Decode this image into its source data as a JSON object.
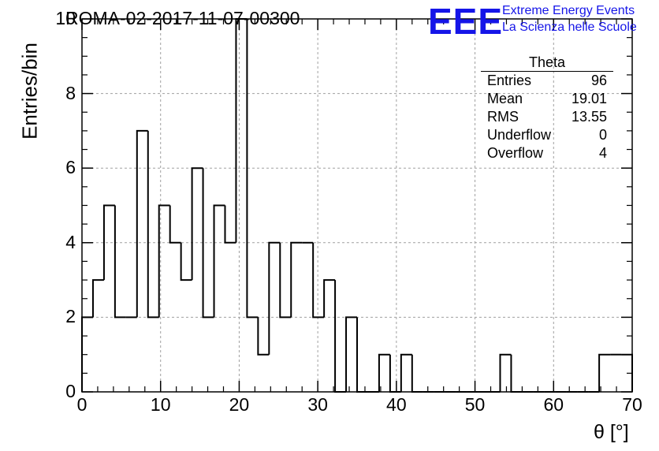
{
  "chart_data": {
    "type": "histogram",
    "title": "ROMA-02-2017-11-07-00300",
    "xlabel": "θ [°]",
    "ylabel": "Entries/bin",
    "xlim": [
      0,
      70
    ],
    "ylim": [
      0,
      10
    ],
    "x_ticks": [
      "0",
      "10",
      "20",
      "30",
      "40",
      "50",
      "60",
      "70"
    ],
    "y_ticks": [
      "0",
      "2",
      "4",
      "6",
      "8",
      "10"
    ],
    "grid": true,
    "bin_edges": [
      0,
      1.4,
      2.8,
      4.2,
      5.6,
      7.0,
      8.4,
      9.8,
      11.2,
      12.6,
      14.0,
      15.4,
      16.8,
      18.2,
      19.6,
      21.0,
      22.4,
      23.8,
      25.2,
      26.6,
      28.0,
      29.4,
      30.8,
      32.2,
      33.6,
      35.0,
      36.4,
      37.8,
      39.2,
      40.6,
      42.0,
      43.4,
      44.8,
      46.2,
      47.6,
      49.0,
      50.4,
      51.8,
      53.2,
      54.6,
      56.0,
      57.4,
      58.8,
      60.2,
      61.6,
      63.0,
      64.4,
      65.8,
      67.2,
      68.6,
      70.0
    ],
    "counts": [
      2,
      3,
      5,
      2,
      2,
      7,
      2,
      5,
      4,
      3,
      6,
      2,
      5,
      4,
      10,
      2,
      1,
      4,
      2,
      4,
      4,
      2,
      3,
      0,
      2,
      0,
      0,
      1,
      0,
      1,
      0,
      0,
      0,
      0,
      0,
      0,
      0,
      0,
      1,
      0,
      0,
      0,
      0,
      0,
      0,
      0,
      0,
      1,
      1,
      1
    ],
    "stats_box": {
      "title": "Theta",
      "rows": [
        {
          "label": "Entries",
          "value": "96"
        },
        {
          "label": "Mean",
          "value": "19.01"
        },
        {
          "label": "RMS",
          "value": "13.55"
        },
        {
          "label": "Underflow",
          "value": "0"
        },
        {
          "label": "Overflow",
          "value": "4"
        }
      ]
    }
  },
  "logo": {
    "mark": "EEE",
    "line1": "Extreme Energy Events",
    "line2": "La Scienza nelle Scuole"
  },
  "colors": {
    "line": "#000000",
    "grid": "#a0a0a0",
    "logo": "#1515e8"
  }
}
